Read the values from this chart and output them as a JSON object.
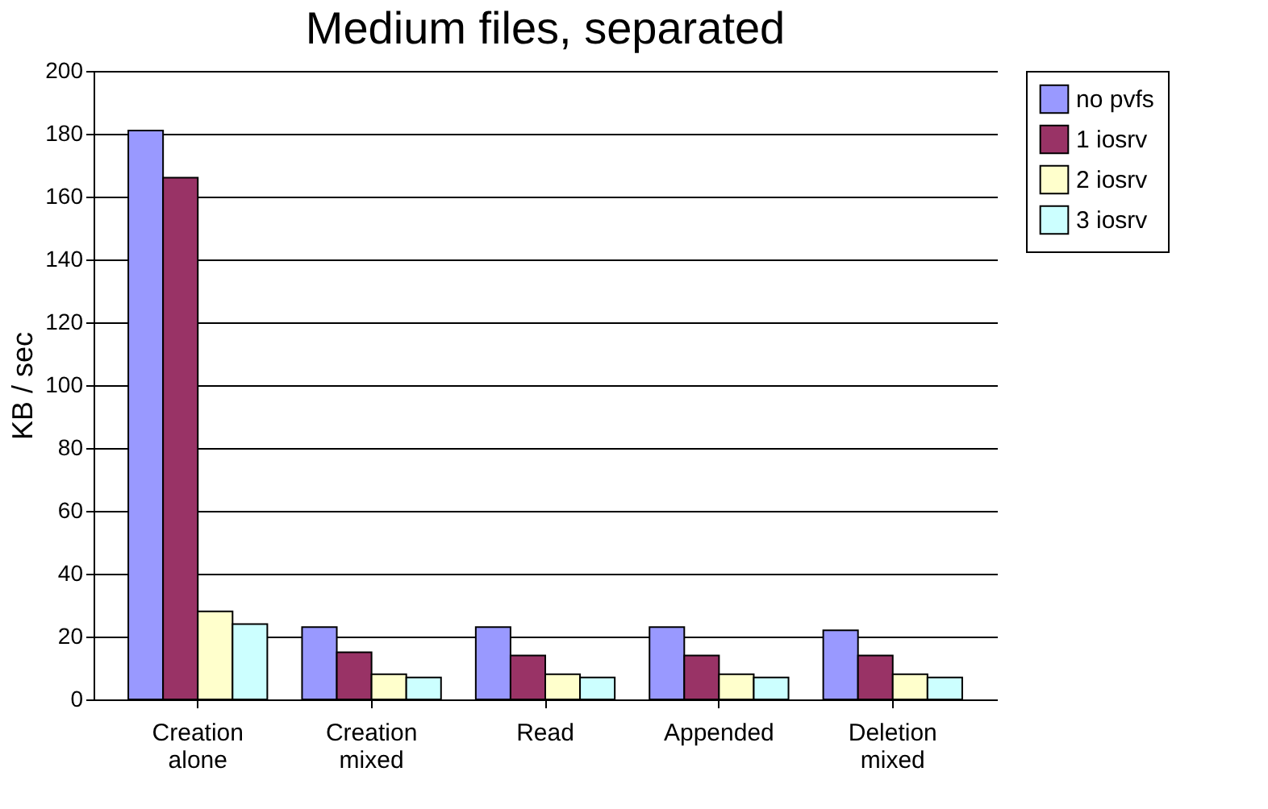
{
  "chart_data": {
    "type": "bar",
    "title": "Medium files, separated",
    "ylabel": "KB / sec",
    "categories": [
      "Creation alone",
      "Creation mixed",
      "Read",
      "Appended",
      "Deletion mixed"
    ],
    "series": [
      {
        "name": "no pvfs",
        "color": "#9999ff",
        "values": [
          181,
          23,
          23,
          23,
          22
        ]
      },
      {
        "name": "1 iosrv",
        "color": "#993366",
        "values": [
          166,
          15,
          14,
          14,
          14
        ]
      },
      {
        "name": "2 iosrv",
        "color": "#ffffcc",
        "values": [
          28,
          8,
          8,
          8,
          8
        ]
      },
      {
        "name": "3 iosrv",
        "color": "#ccffff",
        "values": [
          24,
          7,
          7,
          7,
          7
        ]
      }
    ],
    "ylim": [
      0,
      200
    ],
    "yticks": [
      0,
      20,
      40,
      60,
      80,
      100,
      120,
      140,
      160,
      180,
      200
    ],
    "grid": "y",
    "legend": "right"
  }
}
